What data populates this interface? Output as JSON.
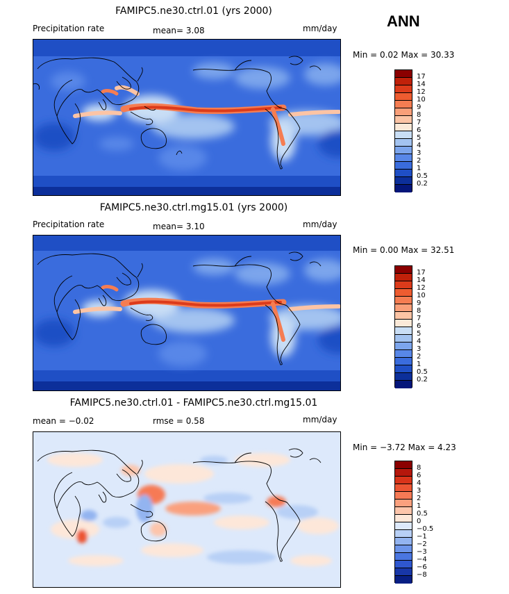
{
  "season": "ANN",
  "panels": [
    {
      "title": "FAMIPC5.ne30.ctrl.01 (yrs 2000)",
      "left_label": "Precipitation rate",
      "stat1": "mean=   3.08",
      "stat2": "",
      "units": "mm/day",
      "minmax": "Min =   0.02 Max =  30.33",
      "levels": [
        "17",
        "14",
        "12",
        "10",
        "9",
        "8",
        "7",
        "6",
        "5",
        "4",
        "3",
        "2",
        "1",
        "0.5",
        "0.2"
      ],
      "colors": [
        "#8b0000",
        "#c0210a",
        "#dc3b1b",
        "#ee5c30",
        "#f57d52",
        "#f99f79",
        "#fcc4a5",
        "#fbe9d8",
        "#c9def5",
        "#a3c3f0",
        "#7ca5ec",
        "#5887e8",
        "#3a6cdd",
        "#1f4fc5",
        "#0c2f9a",
        "#04167a"
      ]
    },
    {
      "title": "FAMIPC5.ne30.ctrl.mg15.01 (yrs 2000)",
      "left_label": "Precipitation rate",
      "stat1": "mean=   3.10",
      "stat2": "",
      "units": "mm/day",
      "minmax": "Min =   0.00 Max =  32.51",
      "levels": [
        "17",
        "14",
        "12",
        "10",
        "9",
        "8",
        "7",
        "6",
        "5",
        "4",
        "3",
        "2",
        "1",
        "0.5",
        "0.2"
      ],
      "colors": [
        "#8b0000",
        "#c0210a",
        "#dc3b1b",
        "#ee5c30",
        "#f57d52",
        "#f99f79",
        "#fcc4a5",
        "#fbe9d8",
        "#c9def5",
        "#a3c3f0",
        "#7ca5ec",
        "#5887e8",
        "#3a6cdd",
        "#1f4fc5",
        "#0c2f9a",
        "#04167a"
      ]
    },
    {
      "title": "FAMIPC5.ne30.ctrl.01 - FAMIPC5.ne30.ctrl.mg15.01",
      "left_label": "",
      "stat1": "mean =  −0.02",
      "stat2": "rmse =   0.58",
      "units": "mm/day",
      "minmax": "Min =  −3.72 Max =   4.23",
      "levels": [
        "8",
        "6",
        "4",
        "3",
        "2",
        "1",
        "0.5",
        "0",
        "−0.5",
        "−1",
        "−2",
        "−3",
        "−4",
        "−6",
        "−8"
      ],
      "colors": [
        "#8b0000",
        "#b5170c",
        "#d9341a",
        "#ec5533",
        "#f67a55",
        "#faa07e",
        "#fdc5ab",
        "#fde7d9",
        "#dde9fb",
        "#b8d0f6",
        "#93b4f0",
        "#6d95ea",
        "#4a76e1",
        "#2f57cf",
        "#1837a8",
        "#081f84"
      ]
    }
  ]
}
